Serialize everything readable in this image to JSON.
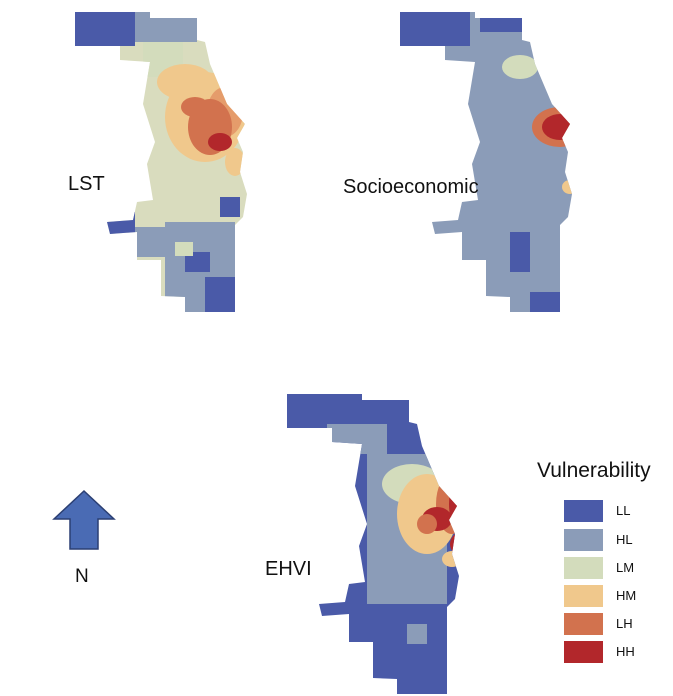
{
  "maps": [
    {
      "id": "lst",
      "label": "LST"
    },
    {
      "id": "socioeconomic",
      "label": "Socioeconomic"
    },
    {
      "id": "ehvi",
      "label": "EHVI"
    }
  ],
  "north_label": "N",
  "legend": {
    "title": "Vulnerability",
    "items": [
      {
        "label": "LL",
        "color": "#4a5aa8"
      },
      {
        "label": "HL",
        "color": "#8b9cb8"
      },
      {
        "label": "LM",
        "color": "#d3dcbc"
      },
      {
        "label": "HM",
        "color": "#f0c88c"
      },
      {
        "label": "LH",
        "color": "#d2724e"
      },
      {
        "label": "HH",
        "color": "#b2272b"
      }
    ]
  },
  "colors": {
    "north_arrow": "#4a6bb4",
    "north_arrow_stroke": "#2b3f73"
  }
}
